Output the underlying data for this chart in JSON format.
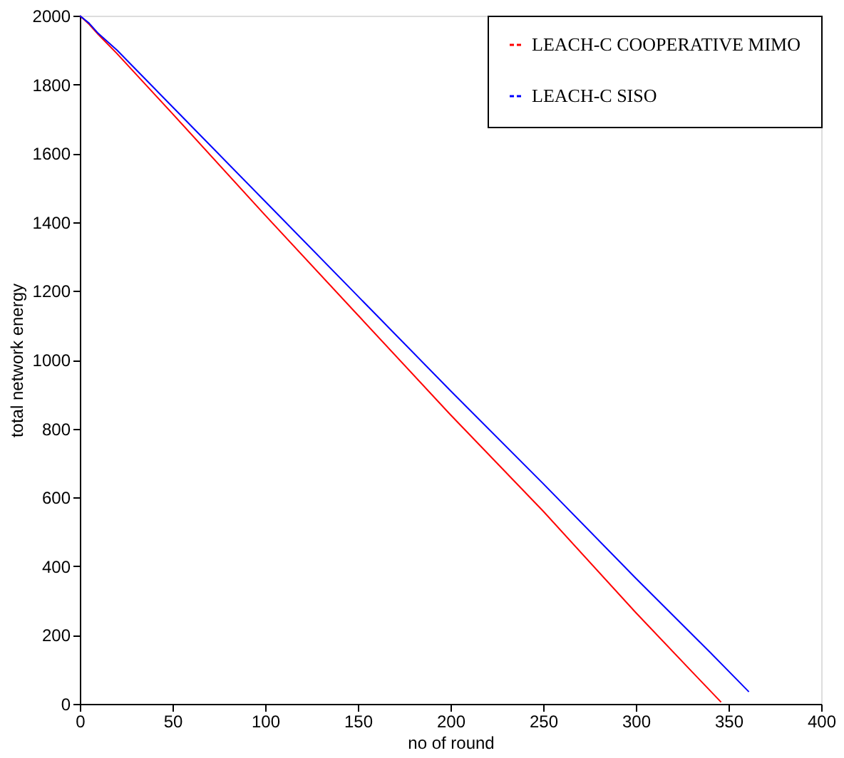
{
  "chart_data": {
    "type": "line",
    "xlabel": "no of round",
    "ylabel": "total network energy",
    "xlim": [
      0,
      400
    ],
    "xticks": [
      0,
      50,
      100,
      150,
      200,
      250,
      300,
      350,
      400
    ],
    "ylim": [
      0,
      2000
    ],
    "yticks": [
      0,
      200,
      400,
      600,
      800,
      1000,
      1200,
      1400,
      1600,
      1800,
      2000
    ],
    "grid": false,
    "legend": "top right",
    "line_style": "solid",
    "marker": "none",
    "series": [
      {
        "name": "LEACH-C COOPERATIVE MIMO",
        "color": "#ff0000",
        "x": [
          0,
          5,
          10,
          20,
          50,
          100,
          150,
          200,
          250,
          300,
          330,
          346
        ],
        "values": [
          2000,
          1975,
          1945,
          1890,
          1715,
          1420,
          1130,
          840,
          560,
          265,
          95,
          5
        ]
      },
      {
        "name": "LEACH-C SISO",
        "color": "#0000ff",
        "x": [
          0,
          5,
          10,
          20,
          50,
          100,
          150,
          200,
          250,
          300,
          340,
          361
        ],
        "values": [
          2000,
          1978,
          1948,
          1900,
          1735,
          1460,
          1185,
          910,
          640,
          365,
          150,
          35
        ]
      }
    ]
  }
}
